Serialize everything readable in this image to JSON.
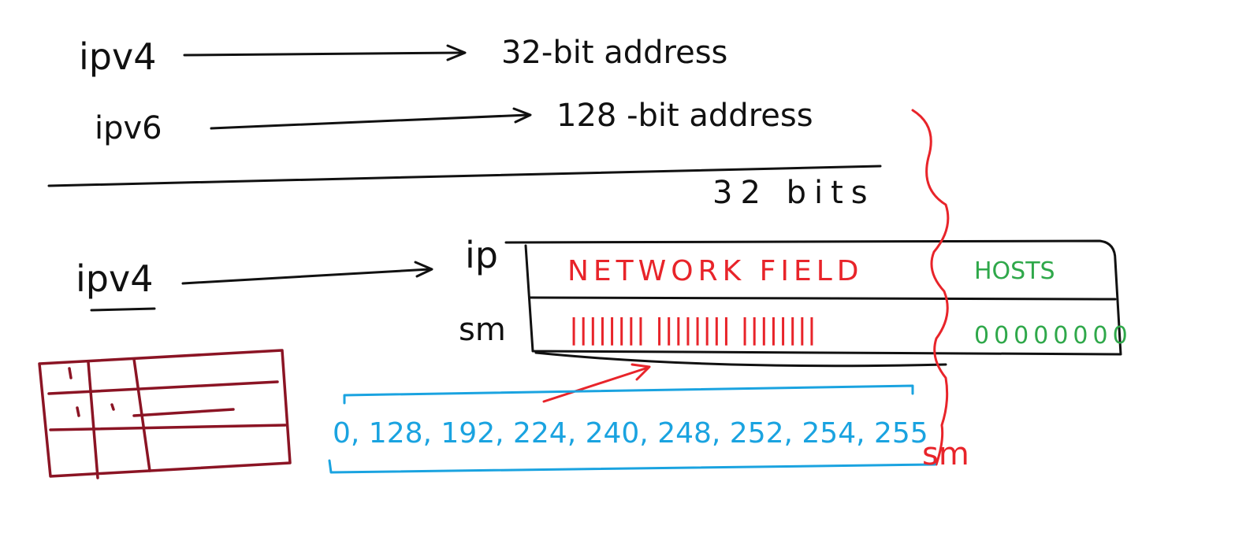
{
  "rows": {
    "ipv4_top": {
      "term": "ipv4",
      "description": "32-bit address"
    },
    "ipv6": {
      "term": "ipv6",
      "description": "128 -bit address"
    }
  },
  "bits_label": "32 bits",
  "layout": {
    "ipv4_label": "ipv4",
    "ip_label": "ip",
    "sm_label": "sm",
    "network_field": "NETWORK FIELD",
    "hosts": "HOSTS",
    "mask_ones": "||||||||  ||||||||  ||||||||",
    "mask_zeros": "00000000"
  },
  "mask_values": "0, 128, 192, 224, 240, 248, 252, 254, 255",
  "sm_red_label": "sm",
  "colors": {
    "ink": "#111111",
    "red": "#e8242a",
    "green": "#2fa84a",
    "blue": "#1aa3e0",
    "maroon": "#8b1424"
  }
}
